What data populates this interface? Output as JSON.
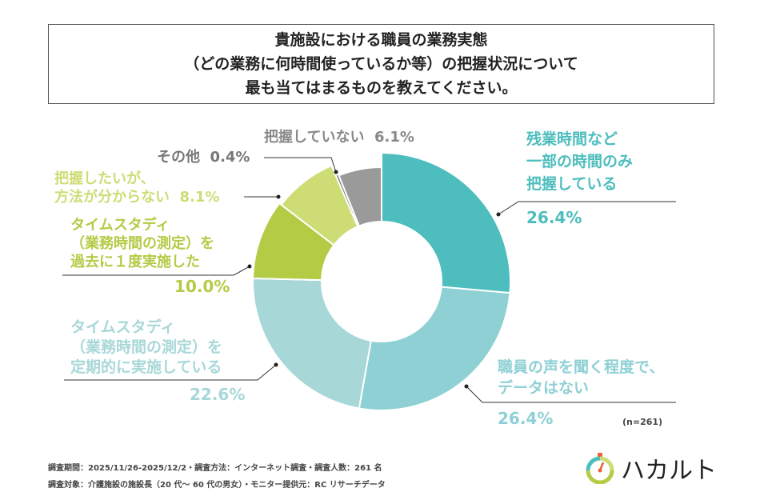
{
  "title": {
    "lines": [
      "貴施設における職員の業務実態",
      "（どの業務に何時間使っているか等）の把握状況について",
      "最も当てはまるものを教えてください。"
    ]
  },
  "chart_data": {
    "type": "pie",
    "style": "donut",
    "start": "12 o'clock, clockwise",
    "categories": [
      "残業時間など一部の時間のみ把握している",
      "職員の声を聞く程度で、データはない",
      "タイムスタディ（業務時間の測定）を定期的に実施している",
      "タイムスタディ（業務時間の測定）を過去に１度実施した",
      "把握したいが、方法が分からない",
      "その他",
      "把握していない"
    ],
    "values": [
      26.4,
      26.4,
      22.6,
      10.0,
      8.1,
      0.4,
      6.1
    ],
    "colors": [
      "#4dbdbd",
      "#8ed0d4",
      "#a8d7d8",
      "#b4cb46",
      "#cddc74",
      "#777777",
      "#9a9a9a"
    ],
    "labels": [
      {
        "lines": [
          "残業時間など",
          "一部の時間のみ",
          "把握している"
        ],
        "pct": "26.4%"
      },
      {
        "lines": [
          "職員の声を聞く程度で、",
          "データはない"
        ],
        "pct": "26.4%"
      },
      {
        "lines": [
          "タイムスタディ",
          "（業務時間の測定）を",
          "定期的に実施している"
        ],
        "pct": "22.6%"
      },
      {
        "lines": [
          "タイムスタディ",
          "（業務時間の測定）を",
          "過去に１度実施した"
        ],
        "pct": "10.0%"
      },
      {
        "lines": [
          "把握したいが、",
          "方法が分からない"
        ],
        "pct": "8.1%"
      },
      {
        "lines": [
          "その他"
        ],
        "pct": "0.4%"
      },
      {
        "lines": [
          "把握していない"
        ],
        "pct": "6.1%"
      }
    ],
    "n_label": "(n=261)"
  },
  "footer": {
    "line1": "調査期間：2025/11/26-2025/12/2・調査方法：インターネット調査・調査人数：261 名",
    "line2": "調査対象：介護施設の施設長（20 代～ 60 代の男女）・モニター提供元：RC リサーチデータ"
  },
  "logo": {
    "text": "ハカルト",
    "icon": "stopwatch-icon"
  }
}
